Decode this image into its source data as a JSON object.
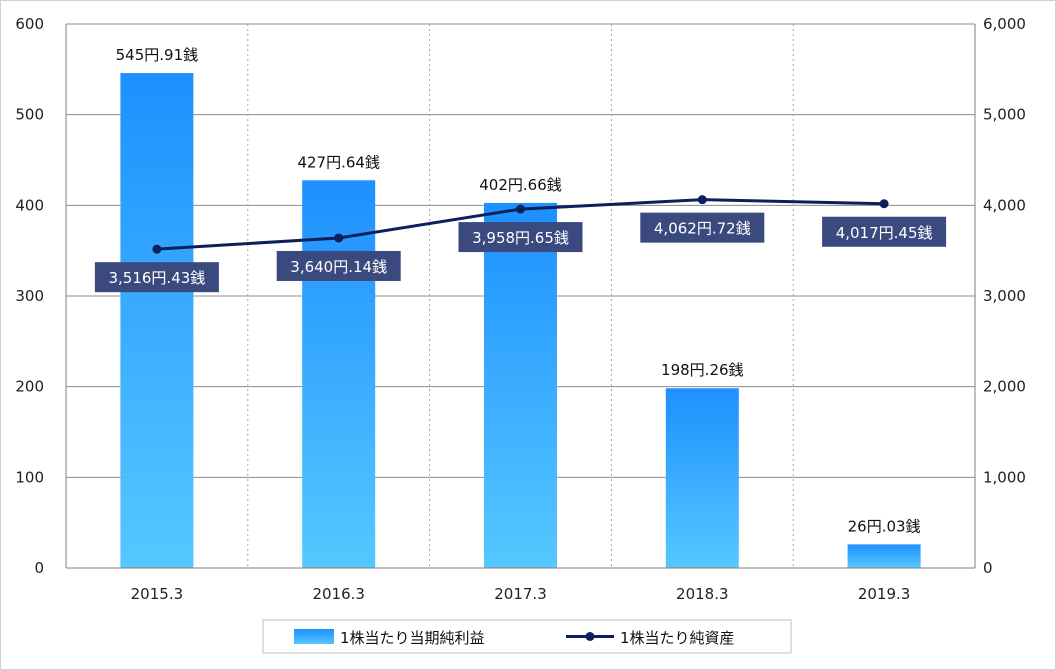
{
  "chart_data": {
    "type": "bar+line",
    "categories": [
      "2015.3",
      "2016.3",
      "2017.3",
      "2018.3",
      "2019.3"
    ],
    "series": [
      {
        "name": "1株当たり当期純利益",
        "type": "bar",
        "axis": "left",
        "values": [
          545.91,
          427.64,
          402.66,
          198.26,
          26.03
        ],
        "labels": [
          "545円.91銭",
          "427円.64銭",
          "402円.66銭",
          "198円.26銭",
          "26円.03銭"
        ]
      },
      {
        "name": "1株当たり純資産",
        "type": "line",
        "axis": "right",
        "values": [
          3516.43,
          3640.14,
          3958.65,
          4062.72,
          4017.45
        ],
        "labels": [
          "3,516円.43銭",
          "3,640円.14銭",
          "3,958円.65銭",
          "4,062円.72銭",
          "4,017円.45銭"
        ]
      }
    ],
    "y_left": {
      "ylim": [
        0,
        600
      ],
      "ticks": [
        "0",
        "100",
        "200",
        "300",
        "400",
        "500",
        "600"
      ]
    },
    "y_right": {
      "ylim": [
        0,
        6000
      ],
      "ticks": [
        "0",
        "1,000",
        "2,000",
        "3,000",
        "4,000",
        "5,000",
        "6,000"
      ]
    },
    "grid": {
      "horizontal": true,
      "vertical": "dotted"
    },
    "legend": {
      "position": "bottom"
    },
    "colors": {
      "bar_top": "#1e90ff",
      "bar_bottom": "#55c8ff",
      "line": "#0d1f5c",
      "label_box": "#3a4a7f"
    }
  }
}
